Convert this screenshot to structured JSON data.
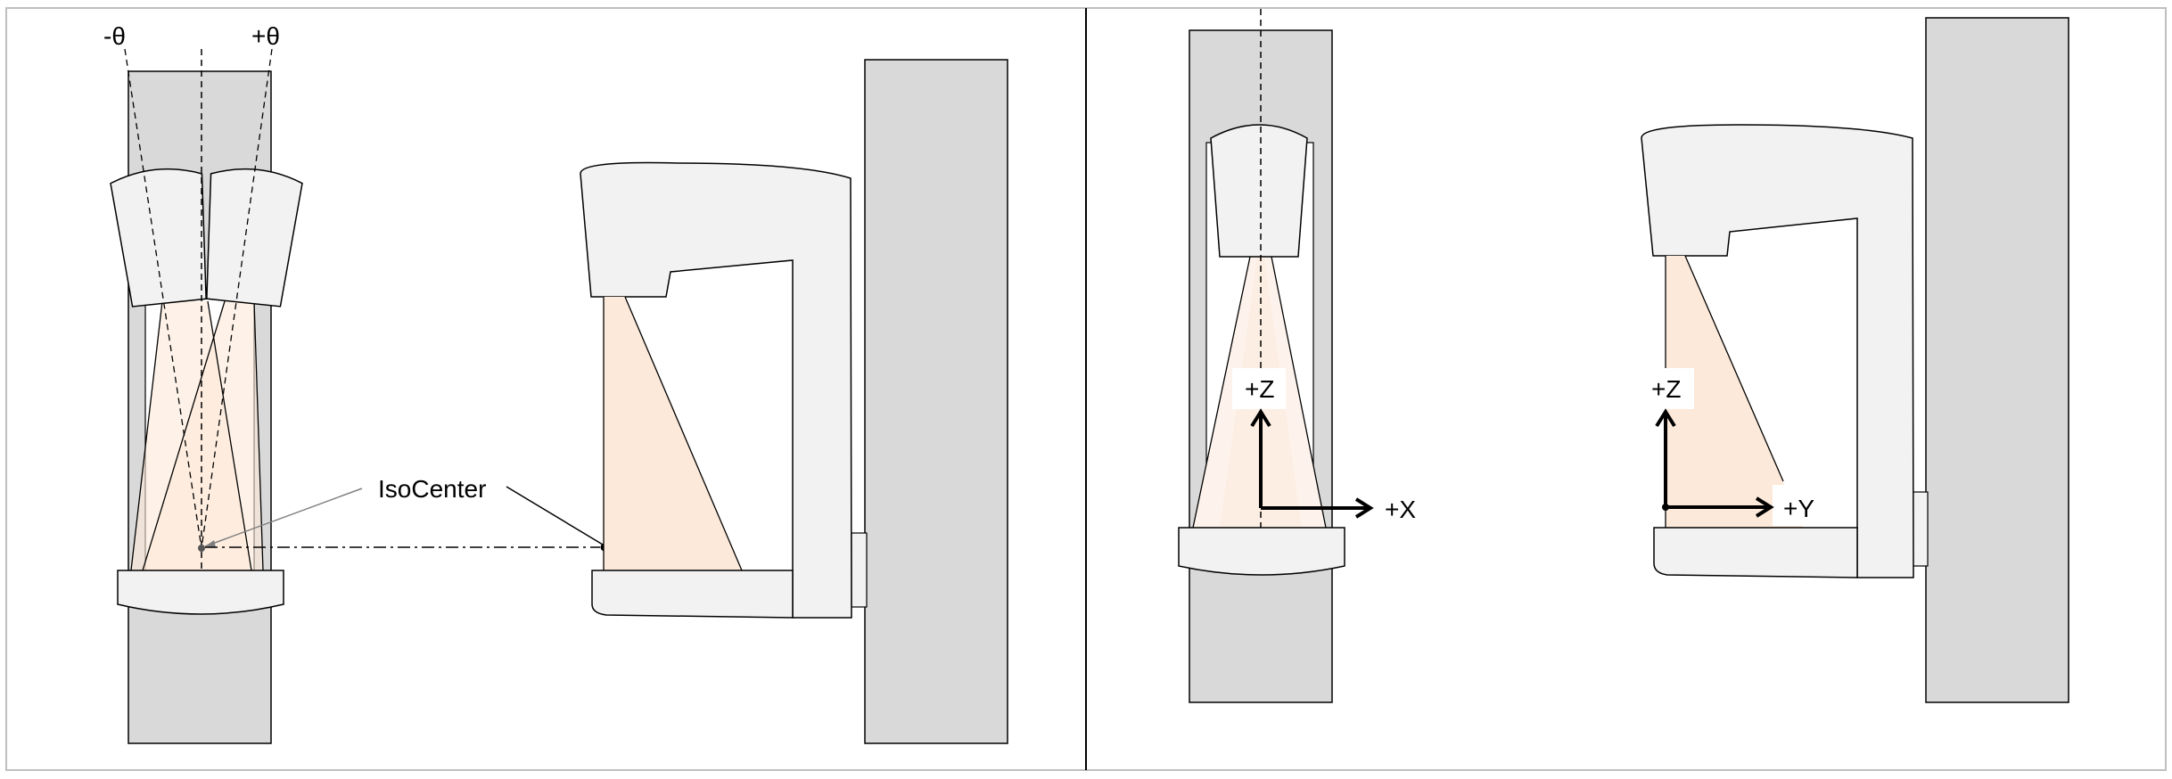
{
  "labels": {
    "minus_theta": "-θ",
    "plus_theta": "+θ",
    "isocenter": "IsoCenter",
    "plus_z_front": "+Z",
    "plus_x": "+X",
    "plus_z_side": "+Z",
    "plus_y": "+Y"
  },
  "colors": {
    "frame_gray": "#d9d9d9",
    "body_light": "#f2f2f2",
    "beam_fill": "#fde9d9",
    "beam_fill_light": "#fdf3ec",
    "stroke": "#000000",
    "border": "#bfbfbf"
  }
}
